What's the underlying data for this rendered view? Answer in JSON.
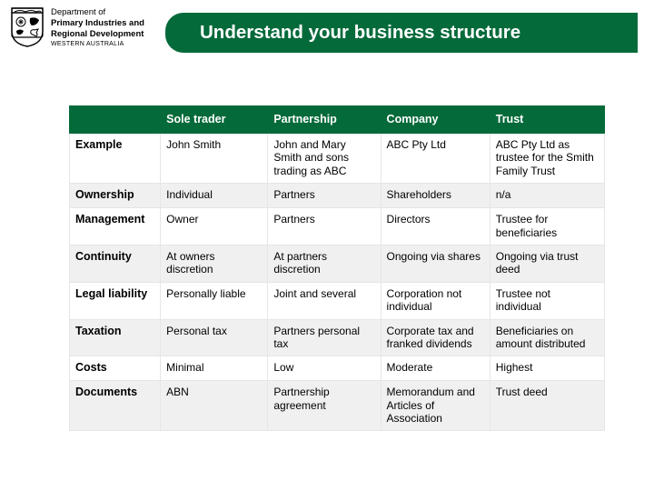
{
  "header": {
    "dept_line1": "Department of",
    "dept_line2": "Primary Industries and",
    "dept_line3": "Regional Development",
    "dept_line4": "WESTERN AUSTRALIA",
    "title": "Understand your business structure"
  },
  "table": {
    "header_bg": "#046a3a",
    "shade_bg": "#f0f0f0",
    "columns": [
      "",
      "Sole trader",
      "Partnership",
      "Company",
      "Trust"
    ],
    "rows": [
      {
        "shade": false,
        "cells": [
          "Example",
          "John Smith",
          "John and Mary Smith and sons trading as ABC",
          "ABC Pty Ltd",
          "ABC Pty Ltd as trustee for the Smith Family Trust"
        ]
      },
      {
        "shade": true,
        "cells": [
          "Ownership",
          "Individual",
          "Partners",
          "Shareholders",
          "n/a"
        ]
      },
      {
        "shade": false,
        "cells": [
          "Management",
          "Owner",
          "Partners",
          "Directors",
          "Trustee for beneficiaries"
        ]
      },
      {
        "shade": true,
        "cells": [
          "Continuity",
          "At owners discretion",
          "At partners discretion",
          "Ongoing via shares",
          "Ongoing via trust deed"
        ]
      },
      {
        "shade": false,
        "cells": [
          "Legal liability",
          "Personally liable",
          "Joint and several",
          "Corporation not individual",
          "Trustee not individual"
        ]
      },
      {
        "shade": true,
        "cells": [
          "Taxation",
          "Personal tax",
          "Partners personal tax",
          "Corporate tax and franked dividends",
          "Beneficiaries on amount distributed"
        ]
      },
      {
        "shade": false,
        "cells": [
          "Costs",
          "Minimal",
          "Low",
          "Moderate",
          "Highest"
        ]
      },
      {
        "shade": true,
        "cells": [
          "Documents",
          "ABN",
          "Partnership agreement",
          "Memorandum and Articles of Association",
          "Trust deed"
        ]
      }
    ]
  }
}
